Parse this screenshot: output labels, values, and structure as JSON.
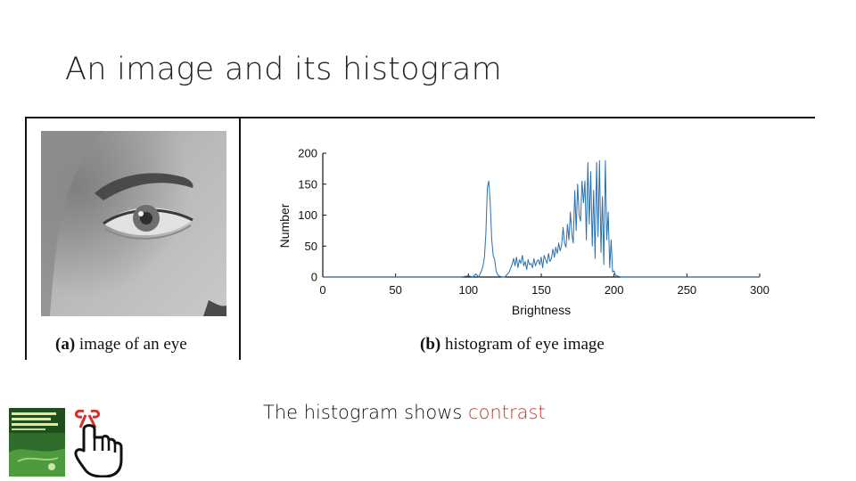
{
  "slide": {
    "title": "An image and its histogram",
    "bottom_text_prefix": "The histogram shows ",
    "bottom_text_highlight": "contrast"
  },
  "figure": {
    "caption_a_label": "(a)",
    "caption_a_text": " image of an eye",
    "caption_b_label": "(b)",
    "caption_b_text": " histogram of eye image"
  },
  "colors": {
    "highlight": "#c0392b",
    "series": "#2a6fb0"
  },
  "icons": {
    "book": "book-cover-icon",
    "hand": "pointing-hand-icon"
  },
  "chart_data": {
    "type": "line",
    "title": "",
    "xlabel": "Brightness",
    "ylabel": "Number",
    "xlim": [
      0,
      300
    ],
    "ylim": [
      0,
      200
    ],
    "xticks": [
      0,
      50,
      100,
      150,
      200,
      250,
      300
    ],
    "yticks": [
      0,
      50,
      100,
      150,
      200
    ],
    "grid": false,
    "series": [
      {
        "name": "",
        "x": [
          0,
          95,
          100,
          103,
          105,
          107,
          109,
          110,
          111,
          112,
          113,
          114,
          115,
          116,
          117,
          118,
          119,
          120,
          121,
          122,
          123,
          125,
          128,
          130,
          131,
          132,
          133,
          134,
          135,
          136,
          137,
          138,
          139,
          140,
          141,
          142,
          143,
          144,
          145,
          146,
          147,
          148,
          149,
          150,
          151,
          152,
          153,
          154,
          155,
          156,
          157,
          158,
          159,
          160,
          161,
          162,
          163,
          164,
          165,
          166,
          167,
          168,
          169,
          170,
          171,
          172,
          173,
          174,
          175,
          176,
          177,
          178,
          179,
          180,
          181,
          182,
          183,
          184,
          185,
          186,
          187,
          188,
          189,
          190,
          191,
          192,
          193,
          194,
          195,
          196,
          197,
          198,
          199,
          200,
          201,
          203,
          205,
          210,
          250,
          300
        ],
        "y": [
          0,
          0,
          2,
          0,
          5,
          0,
          10,
          18,
          32,
          70,
          145,
          155,
          120,
          60,
          35,
          28,
          10,
          4,
          2,
          1,
          0,
          0,
          8,
          20,
          30,
          18,
          32,
          15,
          28,
          22,
          35,
          18,
          25,
          12,
          28,
          20,
          22,
          15,
          30,
          18,
          25,
          28,
          20,
          32,
          15,
          35,
          28,
          22,
          38,
          25,
          30,
          45,
          32,
          48,
          38,
          55,
          42,
          52,
          80,
          55,
          48,
          85,
          60,
          105,
          70,
          55,
          140,
          75,
          150,
          100,
          90,
          155,
          120,
          155,
          60,
          185,
          85,
          170,
          50,
          140,
          30,
          185,
          65,
          188,
          40,
          130,
          20,
          188,
          60,
          105,
          15,
          60,
          8,
          10,
          3,
          1,
          0,
          0,
          0,
          0
        ]
      }
    ]
  }
}
